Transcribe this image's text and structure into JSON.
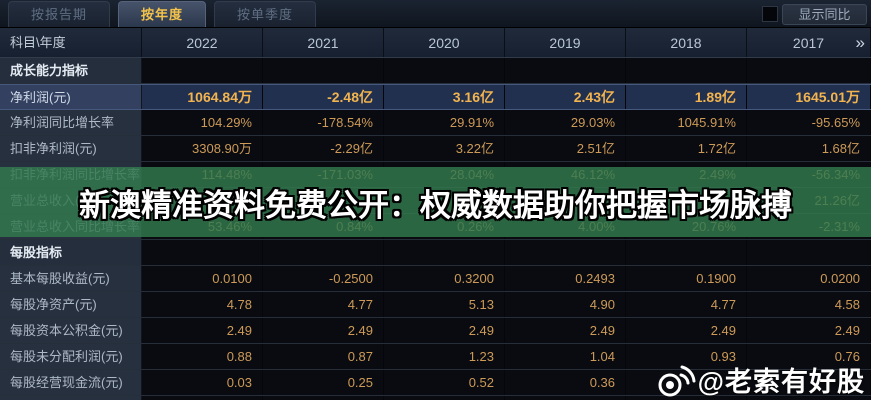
{
  "tabs": [
    {
      "label": "按报告期",
      "active": false
    },
    {
      "label": "按年度",
      "active": true
    },
    {
      "label": "按单季度",
      "active": false
    }
  ],
  "toolbar": {
    "compare_label": "显示同比"
  },
  "table": {
    "corner_header": "科目\\年度",
    "year_columns": [
      "2022",
      "2021",
      "2020",
      "2019",
      "2018",
      "2017"
    ],
    "more_icon": "»",
    "rows": [
      {
        "type": "section",
        "label": "成长能力指标",
        "values": [
          "",
          "",
          "",
          "",
          "",
          ""
        ]
      },
      {
        "type": "data",
        "label": "净利润(元)",
        "highlight": true,
        "values": [
          "1064.84万",
          "-2.48亿",
          "3.16亿",
          "2.43亿",
          "1.89亿",
          "1645.01万"
        ]
      },
      {
        "type": "data",
        "label": "净利润同比增长率",
        "values": [
          "104.29%",
          "-178.54%",
          "29.91%",
          "29.03%",
          "1045.91%",
          "-95.65%"
        ]
      },
      {
        "type": "data",
        "label": "扣非净利润(元)",
        "values": [
          "3308.90万",
          "-2.29亿",
          "3.22亿",
          "2.51亿",
          "1.72亿",
          "1.68亿"
        ]
      },
      {
        "type": "data",
        "label": "扣非净利润同比增长率",
        "values": [
          "114.48%",
          "-171.03%",
          "28.04%",
          "46.12%",
          "2.49%",
          "-56.34%"
        ]
      },
      {
        "type": "data",
        "label": "营业总收入(元)",
        "values": [
          "",
          "",
          "",
          "",
          "",
          "21.26亿"
        ]
      },
      {
        "type": "data",
        "label": "营业总收入同比增长率",
        "values": [
          "53.46%",
          "0.84%",
          "0.26%",
          "4.00%",
          "20.76%",
          "-2.31%"
        ]
      },
      {
        "type": "section",
        "label": "每股指标",
        "values": [
          "",
          "",
          "",
          "",
          "",
          ""
        ]
      },
      {
        "type": "data",
        "label": "基本每股收益(元)",
        "values": [
          "0.0100",
          "-0.2500",
          "0.3200",
          "0.2493",
          "0.1900",
          "0.0200"
        ]
      },
      {
        "type": "data",
        "label": "每股净资产(元)",
        "values": [
          "4.78",
          "4.77",
          "5.13",
          "4.90",
          "4.77",
          "4.58"
        ]
      },
      {
        "type": "data",
        "label": "每股资本公积金(元)",
        "values": [
          "2.49",
          "2.49",
          "2.49",
          "2.49",
          "2.49",
          "2.49"
        ]
      },
      {
        "type": "data",
        "label": "每股未分配利润(元)",
        "values": [
          "0.88",
          "0.87",
          "1.23",
          "1.04",
          "0.93",
          "0.76"
        ]
      },
      {
        "type": "data",
        "label": "每股经营现金流(元)",
        "values": [
          "0.03",
          "0.25",
          "0.52",
          "0.36",
          "",
          ""
        ]
      }
    ]
  },
  "watermark": {
    "banner_text": "新澳精准资料免费公开：权威数据助你把握市场脉搏",
    "credit_text": "@老索有好股"
  },
  "colors": {
    "accent_gold": "#f3c24a",
    "value_orange": "#cd9a58",
    "banner_green": "#327a4e",
    "header_bg": "#1b2432",
    "label_bg": "#27303e",
    "highlight_row_bg": "#223050"
  }
}
